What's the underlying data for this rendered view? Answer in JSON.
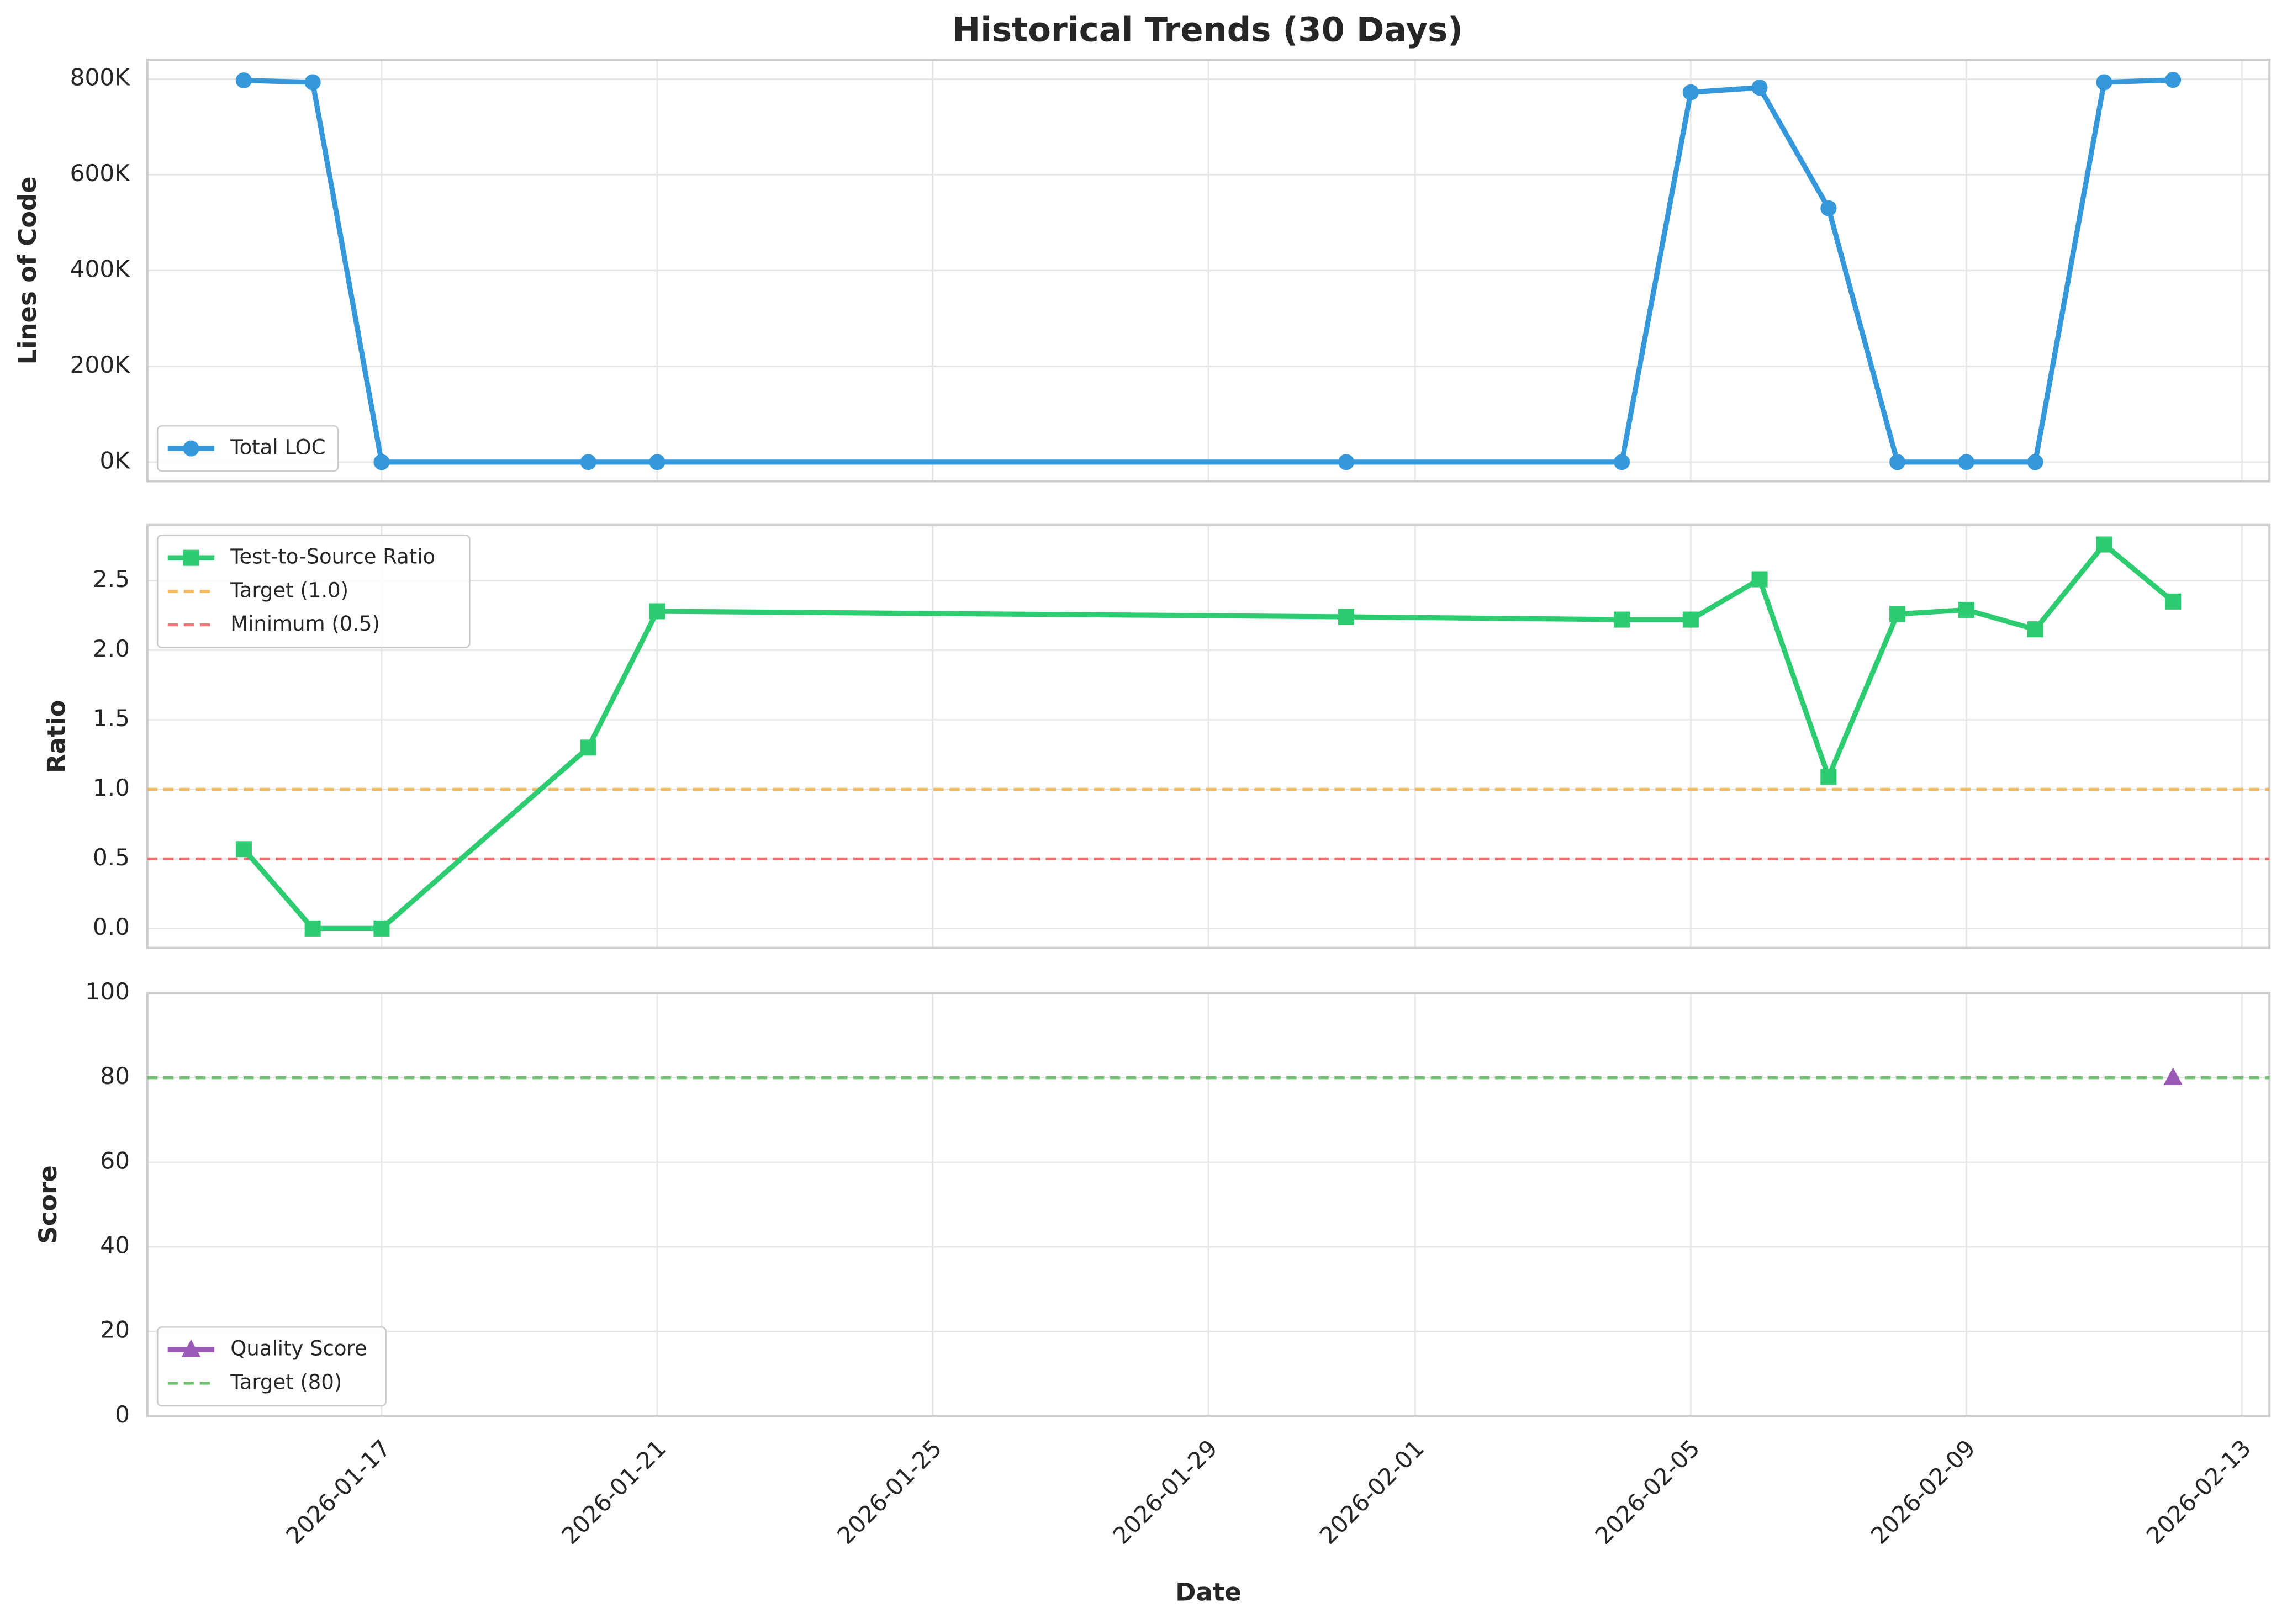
{
  "title": "Historical Trends (30 Days)",
  "chart_data": [
    {
      "type": "line",
      "ylabel": "Lines of Code",
      "x": [
        "2026-01-15",
        "2026-01-16",
        "2026-01-17",
        "2026-01-20",
        "2026-01-21",
        "2026-01-31",
        "2026-02-04",
        "2026-02-05",
        "2026-02-06",
        "2026-02-07",
        "2026-02-08",
        "2026-02-09",
        "2026-02-10",
        "2026-02-11",
        "2026-02-12"
      ],
      "xlim": [
        "2026-01-13T14:24",
        "2026-02-13T09:36"
      ],
      "ylim": [
        -40000,
        840000
      ],
      "yticks": [
        {
          "value": 0,
          "label": "0K"
        },
        {
          "value": 200000,
          "label": "200K"
        },
        {
          "value": 400000,
          "label": "400K"
        },
        {
          "value": 600000,
          "label": "600K"
        },
        {
          "value": 800000,
          "label": "800K"
        }
      ],
      "grid": true,
      "legend": "lower left",
      "series": [
        {
          "name": "Total LOC",
          "color": "#3498db",
          "marker": "circle",
          "values": [
            797000,
            793000,
            0,
            0,
            0,
            0,
            0,
            772000,
            782000,
            530000,
            0,
            0,
            0,
            793000,
            798000
          ]
        }
      ]
    },
    {
      "type": "line",
      "ylabel": "Ratio",
      "x": [
        "2026-01-15",
        "2026-01-16",
        "2026-01-17",
        "2026-01-20",
        "2026-01-21",
        "2026-01-31",
        "2026-02-04",
        "2026-02-05",
        "2026-02-06",
        "2026-02-07",
        "2026-02-08",
        "2026-02-09",
        "2026-02-10",
        "2026-02-11",
        "2026-02-12"
      ],
      "xlim": [
        "2026-01-13T14:24",
        "2026-02-13T09:36"
      ],
      "ylim": [
        -0.14,
        2.9
      ],
      "yticks": [
        {
          "value": 0,
          "label": "0.0"
        },
        0.5,
        {
          "value": 1,
          "label": "1.0"
        },
        1.5,
        {
          "value": 2,
          "label": "2.0"
        },
        2.5
      ],
      "grid": true,
      "legend": "upper left",
      "series": [
        {
          "name": "Test-to-Source Ratio",
          "color": "#2ecc71",
          "marker": "square",
          "values": [
            0.57,
            0,
            0,
            1.3,
            2.28,
            2.24,
            2.22,
            2.22,
            2.51,
            1.09,
            2.26,
            2.29,
            2.15,
            2.76,
            2.35
          ]
        }
      ],
      "hlines": [
        {
          "name": "Target (1.0)",
          "value": 1.0,
          "color": "#f5b041"
        },
        {
          "name": "Minimum (0.5)",
          "value": 0.5,
          "color": "#ec5f5f"
        }
      ]
    },
    {
      "type": "line",
      "ylabel": "Score",
      "xlabel": "Date",
      "x": [
        "2026-01-15",
        "2026-01-16",
        "2026-01-17",
        "2026-01-20",
        "2026-01-21",
        "2026-01-31",
        "2026-02-04",
        "2026-02-05",
        "2026-02-06",
        "2026-02-07",
        "2026-02-08",
        "2026-02-09",
        "2026-02-10",
        "2026-02-11",
        "2026-02-12"
      ],
      "xlim": [
        "2026-01-13T14:24",
        "2026-02-13T09:36"
      ],
      "xticks": [
        "2026-01-17",
        "2026-01-21",
        "2026-01-25",
        "2026-01-29",
        "2026-02-01",
        "2026-02-05",
        "2026-02-09",
        "2026-02-13"
      ],
      "ylim": [
        0,
        100
      ],
      "yticks": [
        0,
        20,
        40,
        60,
        80,
        100
      ],
      "grid": true,
      "legend": "lower left",
      "series": [
        {
          "name": "Quality Score",
          "color": "#9b59b6",
          "marker": "triangle",
          "values": [
            null,
            null,
            null,
            null,
            null,
            null,
            null,
            null,
            null,
            null,
            null,
            null,
            null,
            null,
            80
          ]
        }
      ],
      "hlines": [
        {
          "name": "Target (80)",
          "value": 80,
          "color": "#5cb85c"
        }
      ]
    }
  ]
}
